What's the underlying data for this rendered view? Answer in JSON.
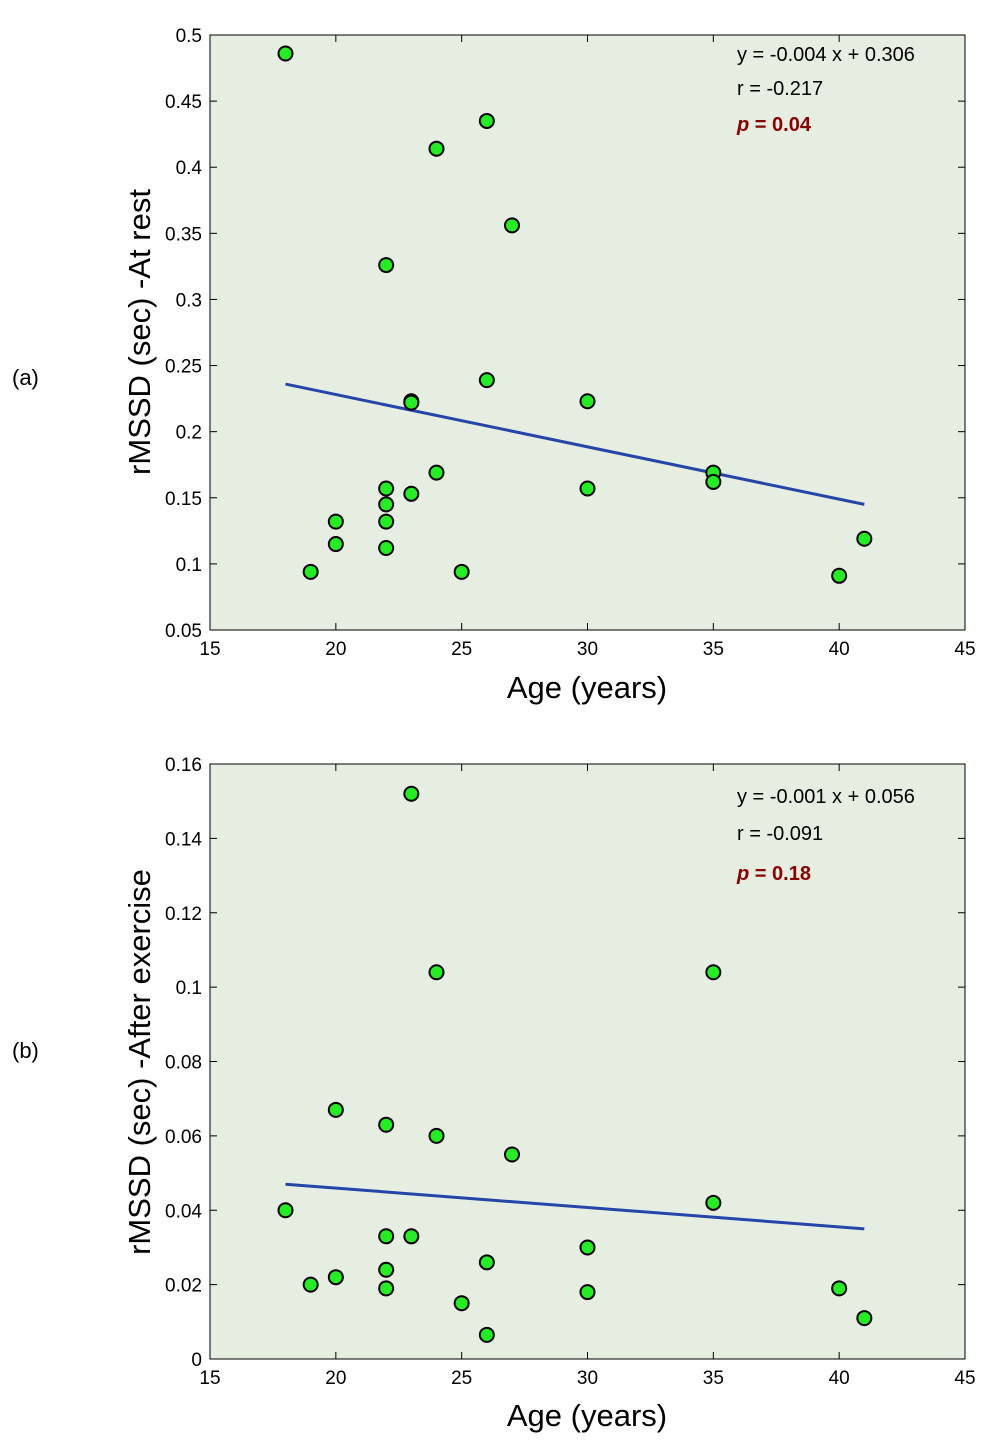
{
  "colors": {
    "plot_background": "#e6ede1",
    "point_fill": "#22ee22",
    "point_stroke": "#000000",
    "fit_line": "#2546a8",
    "p_value": "#8b0000"
  },
  "chart_data": [
    {
      "type": "scatter",
      "panel_label": "(a)",
      "xlabel": "Age (years)",
      "ylabel": "rMSSD (sec) -At rest",
      "xlim": [
        15,
        45
      ],
      "ylim": [
        0.05,
        0.5
      ],
      "xticks": [
        15,
        20,
        25,
        30,
        35,
        40,
        45
      ],
      "yticks": [
        0.05,
        0.1,
        0.15,
        0.2,
        0.25,
        0.3,
        0.35,
        0.4,
        0.45,
        0.5
      ],
      "xtick_labels": [
        "15",
        "20",
        "25",
        "30",
        "35",
        "40",
        "45"
      ],
      "ytick_labels": [
        "0.05",
        "0.1",
        "0.15",
        "0.2",
        "0.25",
        "0.3",
        "0.35",
        "0.4",
        "0.45",
        "0.5"
      ],
      "grid": false,
      "points": [
        {
          "x": 18,
          "y": 0.486
        },
        {
          "x": 19,
          "y": 0.094
        },
        {
          "x": 20,
          "y": 0.132
        },
        {
          "x": 20,
          "y": 0.115
        },
        {
          "x": 22,
          "y": 0.326
        },
        {
          "x": 22,
          "y": 0.157
        },
        {
          "x": 22,
          "y": 0.145
        },
        {
          "x": 22,
          "y": 0.132
        },
        {
          "x": 22,
          "y": 0.112
        },
        {
          "x": 23,
          "y": 0.223
        },
        {
          "x": 23,
          "y": 0.222
        },
        {
          "x": 23,
          "y": 0.153
        },
        {
          "x": 24,
          "y": 0.414
        },
        {
          "x": 24,
          "y": 0.169
        },
        {
          "x": 25,
          "y": 0.094
        },
        {
          "x": 26,
          "y": 0.435
        },
        {
          "x": 26,
          "y": 0.239
        },
        {
          "x": 27,
          "y": 0.356
        },
        {
          "x": 30,
          "y": 0.223
        },
        {
          "x": 30,
          "y": 0.157
        },
        {
          "x": 35,
          "y": 0.169
        },
        {
          "x": 35,
          "y": 0.162
        },
        {
          "x": 40,
          "y": 0.091
        },
        {
          "x": 41,
          "y": 0.119
        }
      ],
      "fit_line": {
        "x": [
          18,
          41
        ],
        "y": [
          0.236,
          0.145
        ]
      },
      "annotations": {
        "equation": "y = -0.004 x + 0.306",
        "r": "r = -0.217",
        "p_label": "p",
        "p_value": " = 0.04"
      }
    },
    {
      "type": "scatter",
      "panel_label": "(b)",
      "xlabel": "Age (years)",
      "ylabel": "rMSSD (sec) -After exercise",
      "xlim": [
        15,
        45
      ],
      "ylim": [
        0,
        0.16
      ],
      "xticks": [
        15,
        20,
        25,
        30,
        35,
        40,
        45
      ],
      "yticks": [
        0,
        0.02,
        0.04,
        0.06,
        0.08,
        0.1,
        0.12,
        0.14,
        0.16
      ],
      "xtick_labels": [
        "15",
        "20",
        "25",
        "30",
        "35",
        "40",
        "45"
      ],
      "ytick_labels": [
        "0",
        "0.02",
        "0.04",
        "0.06",
        "0.08",
        "0.1",
        "0.12",
        "0.14",
        "0.16"
      ],
      "grid": false,
      "points": [
        {
          "x": 18,
          "y": 0.04
        },
        {
          "x": 19,
          "y": 0.02
        },
        {
          "x": 20,
          "y": 0.067
        },
        {
          "x": 20,
          "y": 0.022
        },
        {
          "x": 22,
          "y": 0.063
        },
        {
          "x": 22,
          "y": 0.033
        },
        {
          "x": 22,
          "y": 0.024
        },
        {
          "x": 22,
          "y": 0.019
        },
        {
          "x": 23,
          "y": 0.152
        },
        {
          "x": 23,
          "y": 0.033
        },
        {
          "x": 24,
          "y": 0.104
        },
        {
          "x": 24,
          "y": 0.06
        },
        {
          "x": 25,
          "y": 0.015
        },
        {
          "x": 26,
          "y": 0.026
        },
        {
          "x": 26,
          "y": 0.0065
        },
        {
          "x": 27,
          "y": 0.055
        },
        {
          "x": 30,
          "y": 0.03
        },
        {
          "x": 30,
          "y": 0.018
        },
        {
          "x": 35,
          "y": 0.104
        },
        {
          "x": 35,
          "y": 0.042
        },
        {
          "x": 40,
          "y": 0.019
        },
        {
          "x": 41,
          "y": 0.011
        }
      ],
      "fit_line": {
        "x": [
          18,
          41
        ],
        "y": [
          0.047,
          0.035
        ]
      },
      "annotations": {
        "equation": "y = -0.001 x + 0.056",
        "r": "r = -0.091",
        "p_label": "p",
        "p_value": " = 0.18"
      }
    }
  ]
}
